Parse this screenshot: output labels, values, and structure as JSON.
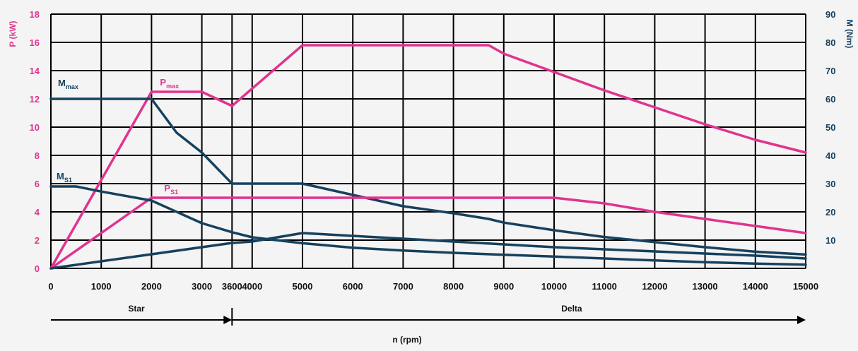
{
  "chart_data": {
    "type": "line",
    "x_ticks": [
      "0",
      "1000",
      "2000",
      "3000",
      "3600",
      "4000",
      "5000",
      "6000",
      "7000",
      "8000",
      "9000",
      "10000",
      "11000",
      "12000",
      "13000",
      "14000",
      "15000"
    ],
    "xlabel": "n (rpm)",
    "xlim": [
      0,
      15000
    ],
    "y_left": {
      "label": "P (kW)",
      "range": [
        0,
        18
      ],
      "ticks": [
        "0",
        "2",
        "4",
        "6",
        "8",
        "10",
        "12",
        "14",
        "16",
        "18"
      ]
    },
    "y_right": {
      "label": "M (Nm)",
      "range": [
        0,
        90
      ],
      "ticks": [
        "10",
        "20",
        "30",
        "40",
        "50",
        "60",
        "70",
        "80",
        "90"
      ]
    },
    "grid": true,
    "colors": {
      "power": "#e0338f",
      "torque": "#16415f",
      "axis_left": "#e0338f",
      "axis_right": "#16415f",
      "text": "#111111"
    },
    "series": [
      {
        "name": "Pmax",
        "label_main": "P",
        "label_sub": "max",
        "axis": "left",
        "color": "#e0338f",
        "points": [
          [
            0,
            0
          ],
          [
            2000,
            12.5
          ],
          [
            3000,
            12.5
          ],
          [
            3600,
            11.5
          ],
          [
            5000,
            15.8
          ],
          [
            8700,
            15.8
          ],
          [
            9000,
            15.2
          ],
          [
            10000,
            13.9
          ],
          [
            11000,
            12.6
          ],
          [
            12000,
            11.4
          ],
          [
            13000,
            10.2
          ],
          [
            14000,
            9.1
          ],
          [
            15000,
            8.2
          ]
        ]
      },
      {
        "name": "Mmax",
        "label_main": "M",
        "label_sub": "max",
        "axis": "right",
        "color": "#16415f",
        "points": [
          [
            0,
            60
          ],
          [
            2000,
            60
          ],
          [
            2500,
            48
          ],
          [
            3000,
            41
          ],
          [
            3600,
            30
          ],
          [
            5000,
            30
          ],
          [
            6000,
            26
          ],
          [
            7000,
            22
          ],
          [
            8000,
            19.5
          ],
          [
            8700,
            17.5
          ],
          [
            9000,
            16.2
          ],
          [
            10000,
            13.5
          ],
          [
            11000,
            11.1
          ],
          [
            12000,
            9.3
          ],
          [
            13000,
            7.5
          ],
          [
            14000,
            5.9
          ],
          [
            15000,
            4.9
          ]
        ]
      },
      {
        "name": "PS1",
        "label_main": "P",
        "label_sub": "S1",
        "axis": "left",
        "color": "#e0338f",
        "points": [
          [
            0,
            0
          ],
          [
            2000,
            5
          ],
          [
            3600,
            5
          ],
          [
            10000,
            5
          ],
          [
            11000,
            4.6
          ],
          [
            12000,
            4
          ],
          [
            13000,
            3.5
          ],
          [
            14000,
            3
          ],
          [
            15000,
            2.5
          ]
        ]
      },
      {
        "name": "MS1",
        "label_main": "M",
        "label_sub": "S1",
        "axis": "right",
        "color": "#16415f",
        "points": [
          [
            0,
            29
          ],
          [
            500,
            29
          ],
          [
            1000,
            27.2
          ],
          [
            2000,
            24
          ],
          [
            3000,
            16
          ],
          [
            3600,
            12.8
          ],
          [
            4000,
            11
          ],
          [
            5000,
            8.9
          ],
          [
            6000,
            7.3
          ],
          [
            7000,
            6.3
          ],
          [
            8000,
            5.5
          ],
          [
            9000,
            4.8
          ],
          [
            10000,
            4.2
          ],
          [
            11000,
            3.5
          ],
          [
            12000,
            2.8
          ],
          [
            13000,
            2.2
          ],
          [
            14000,
            1.7
          ],
          [
            15000,
            1.3
          ]
        ]
      },
      {
        "name": "torque-lower",
        "axis": "left",
        "color": "#16415f",
        "points": [
          [
            0,
            0
          ],
          [
            3600,
            1.8
          ],
          [
            4000,
            1.9
          ],
          [
            5000,
            2.5
          ],
          [
            6000,
            2.3
          ],
          [
            7000,
            2.1
          ],
          [
            8000,
            1.9
          ],
          [
            9000,
            1.7
          ],
          [
            10000,
            1.5
          ],
          [
            11000,
            1.35
          ],
          [
            12000,
            1.2
          ],
          [
            13000,
            1.05
          ],
          [
            14000,
            0.9
          ],
          [
            15000,
            0.7
          ]
        ]
      }
    ],
    "regions": [
      {
        "label": "Star",
        "from": 0,
        "to": 3600
      },
      {
        "label": "Delta",
        "from": 3600,
        "to": 15000
      }
    ]
  }
}
